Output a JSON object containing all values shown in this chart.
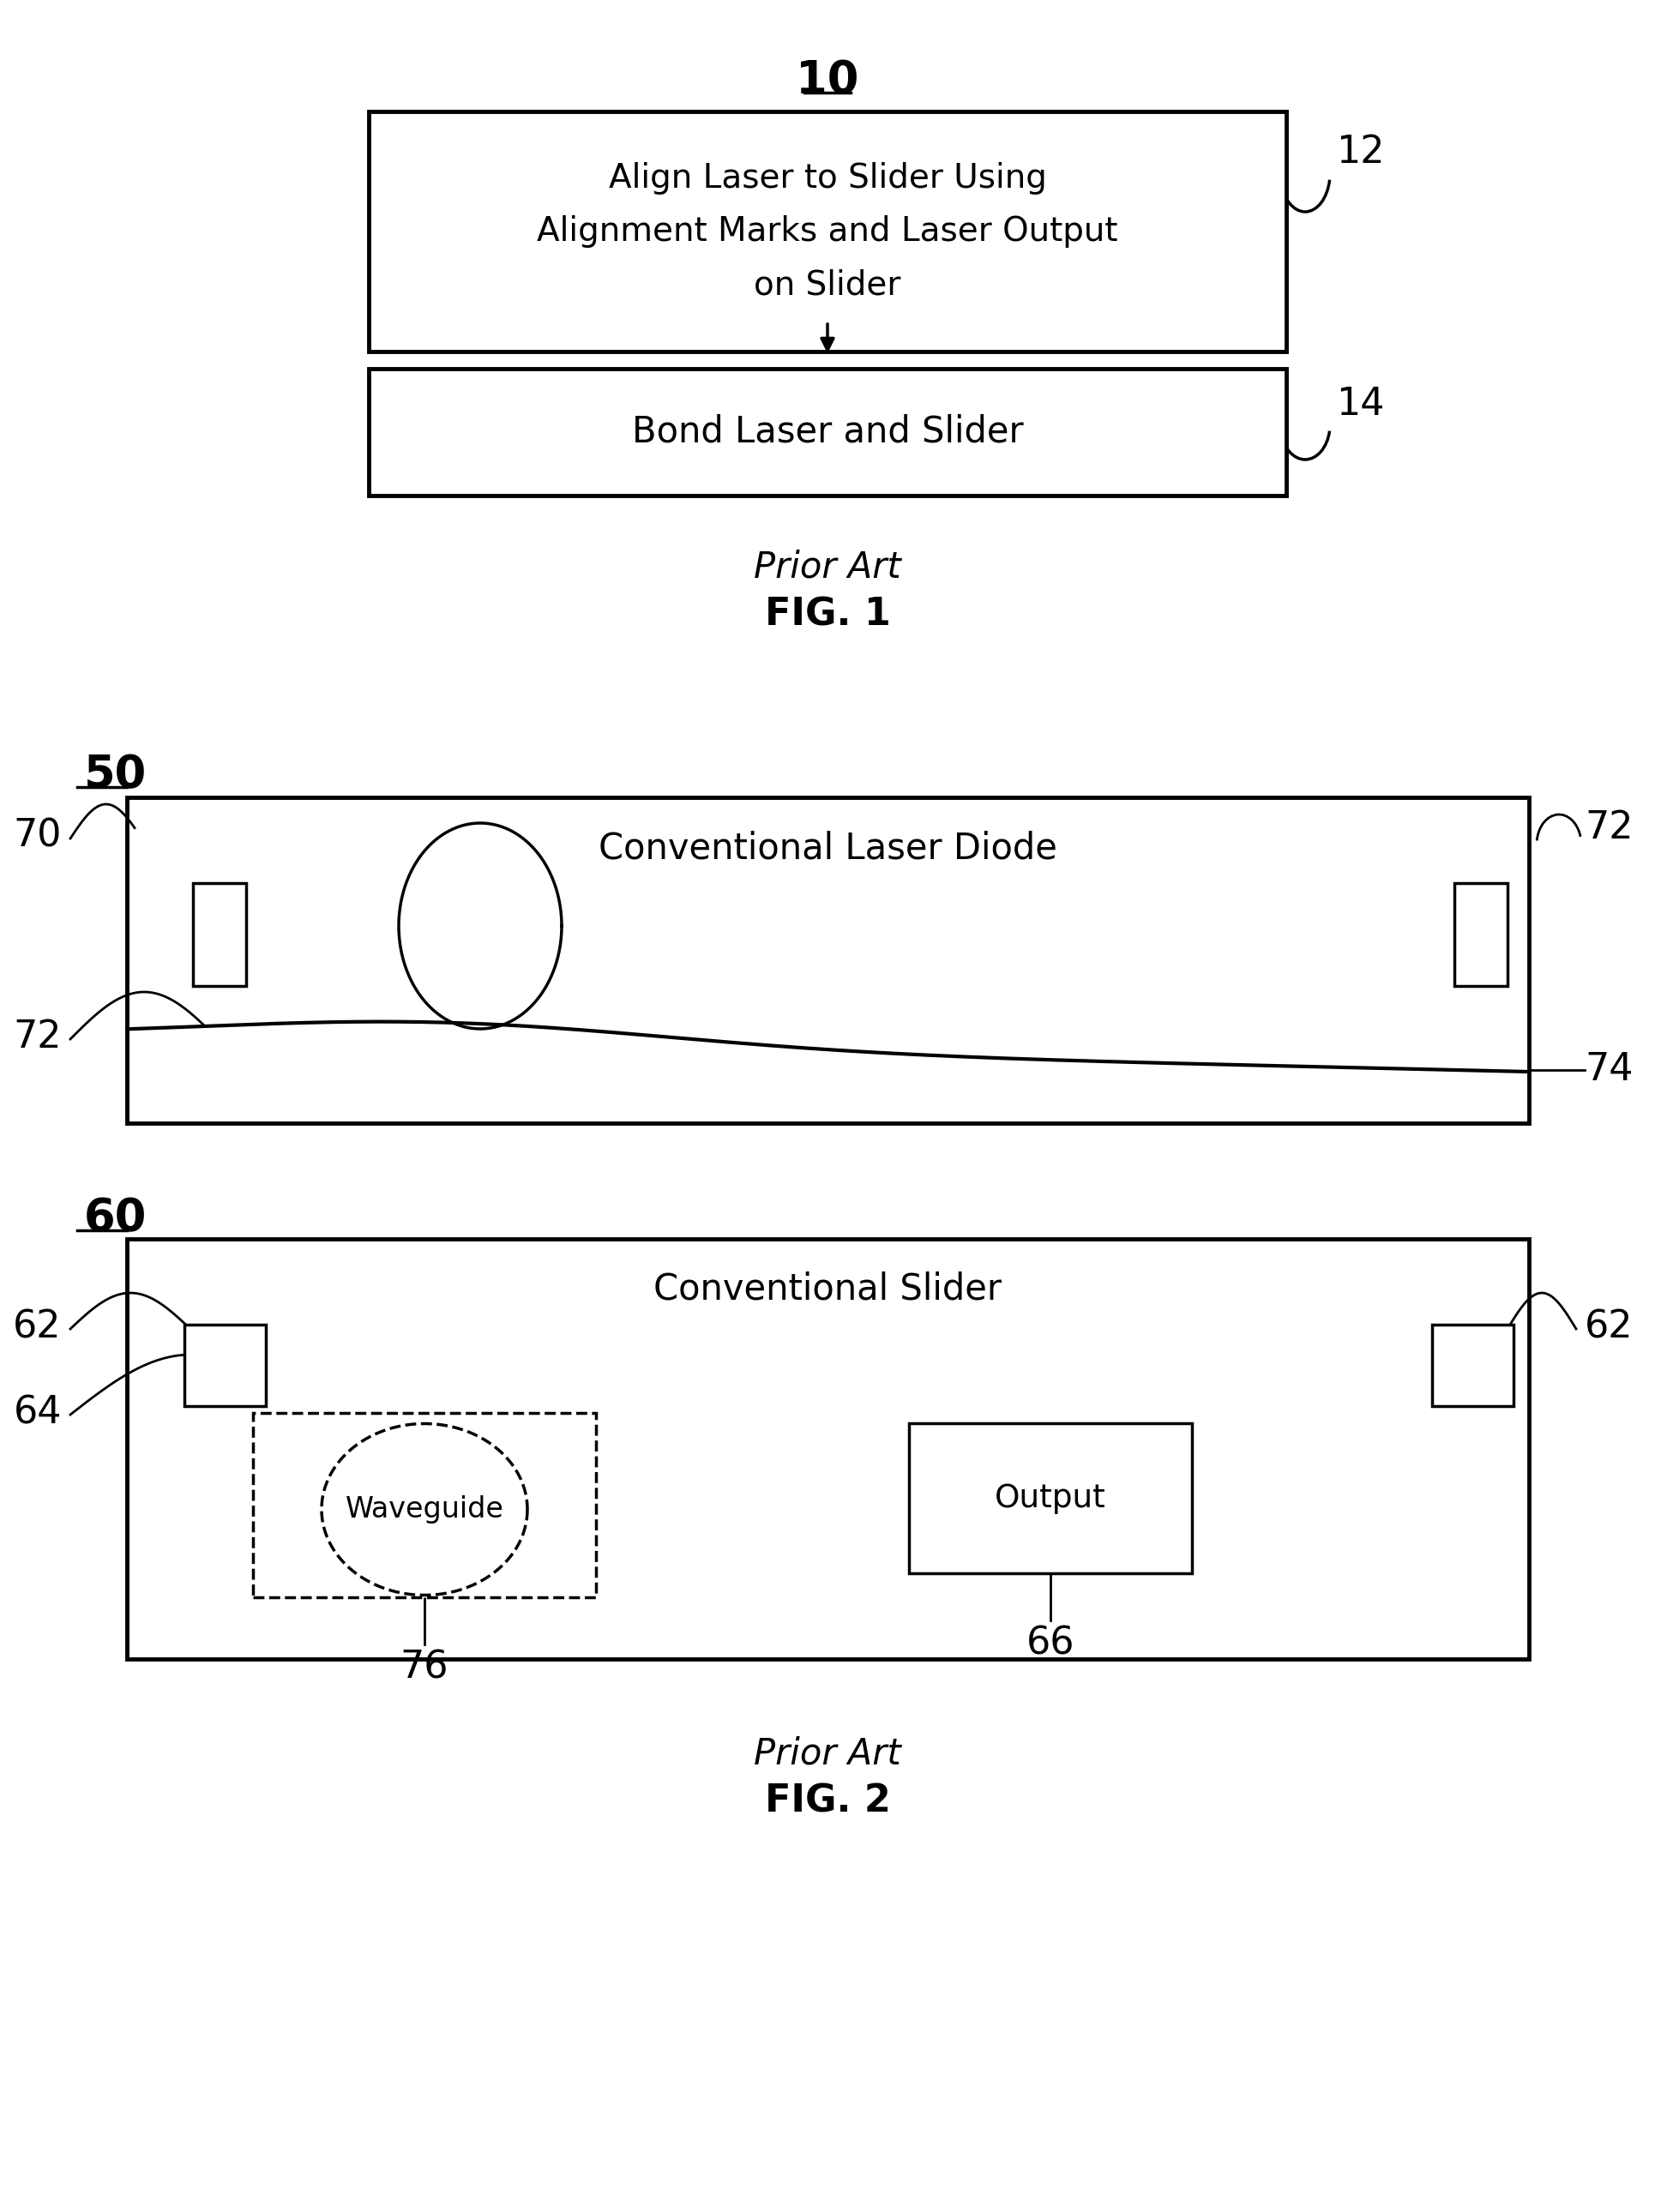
{
  "bg_color": "#ffffff",
  "fig1_label": "10",
  "box1_text": "Align Laser to Slider Using\nAlignment Marks and Laser Output\non Slider",
  "box1_label": "12",
  "box2_text": "Bond Laser and Slider",
  "box2_label": "14",
  "fig1_prior": "Prior Art",
  "fig1_fig": "FIG. 1",
  "ld_label": "50",
  "ld_title": "Conventional Laser Diode",
  "label_70": "70",
  "label_72a": "72",
  "label_72b": "72",
  "label_74": "74",
  "sl_label": "60",
  "sl_title": "Conventional Slider",
  "label_62a": "62",
  "label_62b": "62",
  "label_64": "64",
  "label_66": "66",
  "label_76": "76",
  "waveguide_text": "Waveguide",
  "output_text": "Output",
  "fig2_prior": "Prior Art",
  "fig2_fig": "FIG. 2"
}
